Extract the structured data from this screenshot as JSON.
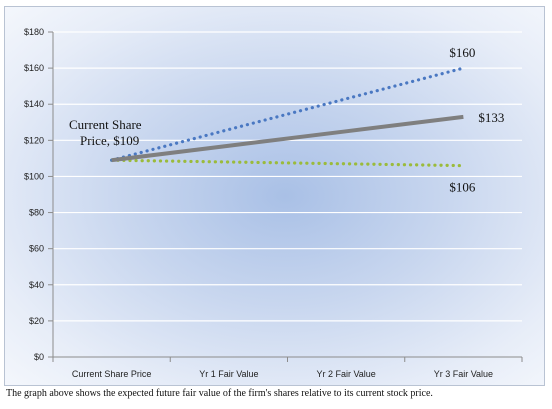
{
  "chart_data": {
    "type": "line",
    "categories": [
      "Current Share Price",
      "Yr 1 Fair Value",
      "Yr 2 Fair Value",
      "Yr 3 Fair Value"
    ],
    "yticks": [
      "$0",
      "$20",
      "$40",
      "$60",
      "$80",
      "$100",
      "$120",
      "$140",
      "$160",
      "$180"
    ],
    "ylim": [
      0,
      180
    ],
    "grid": true,
    "series": [
      {
        "key": "high",
        "values": [
          109,
          126,
          143,
          160
        ],
        "color": "#4a78c2",
        "style": "dotted",
        "end_label": "$160"
      },
      {
        "key": "mid",
        "values": [
          109,
          117,
          125,
          133
        ],
        "color": "#7f7f7f",
        "style": "solid",
        "end_label": "$133"
      },
      {
        "key": "low",
        "values": [
          109,
          108,
          107,
          106
        ],
        "color": "#9bbb3b",
        "style": "dotted",
        "end_label": "$106"
      }
    ],
    "annotation": {
      "line1": "Current Share",
      "line2": "Price, $109"
    }
  },
  "caption": "The graph above shows the expected future fair value of the firm's shares relative to its current stock price."
}
